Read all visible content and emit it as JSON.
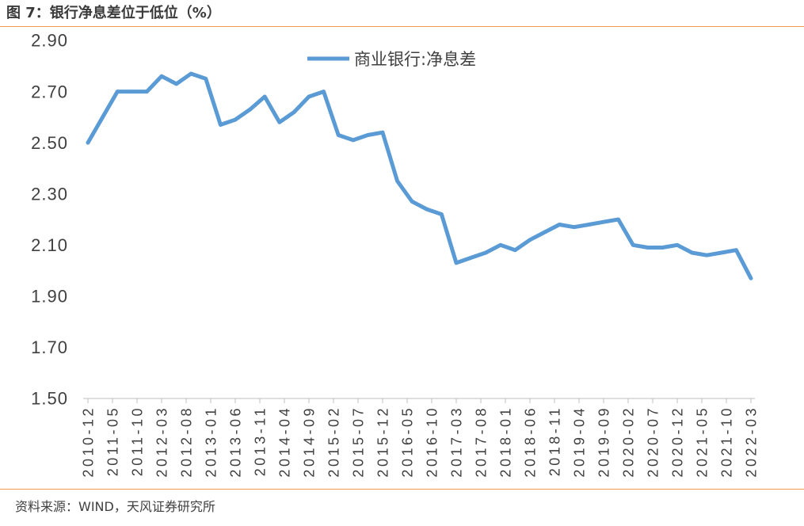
{
  "source": "资料来源：WIND，天风证券研究所",
  "colors": {
    "series": "#5B9BD5",
    "rule": "#ED9C4E",
    "axis": "#BFBFBF",
    "text": "#404040"
  },
  "chart_data": {
    "type": "line",
    "title": "图 7：银行净息差位于低位（%）",
    "xlabel": "",
    "ylabel": "",
    "x_axis_type": "date",
    "xlim": [
      "2010-12",
      "2022-03"
    ],
    "ylim": [
      1.5,
      2.9
    ],
    "grid": false,
    "legend": "top-center",
    "y_tick_labels": [
      "1.50",
      "1.70",
      "1.90",
      "2.10",
      "2.30",
      "2.50",
      "2.70",
      "2.90"
    ],
    "x_tick_labels": [
      "2010-12",
      "2011-05",
      "2011-10",
      "2012-03",
      "2012-08",
      "2013-01",
      "2013-06",
      "2013-11",
      "2014-04",
      "2014-09",
      "2015-02",
      "2015-07",
      "2015-12",
      "2016-05",
      "2016-10",
      "2017-03",
      "2017-08",
      "2018-01",
      "2018-06",
      "2018-11",
      "2019-04",
      "2019-09",
      "2020-02",
      "2020-07",
      "2020-12",
      "2021-05",
      "2021-10",
      "2022-03"
    ],
    "x": [
      "2010-12",
      "2011-03",
      "2011-06",
      "2011-09",
      "2011-12",
      "2012-03",
      "2012-06",
      "2012-09",
      "2012-12",
      "2013-03",
      "2013-06",
      "2013-09",
      "2013-12",
      "2014-03",
      "2014-06",
      "2014-09",
      "2014-12",
      "2015-03",
      "2015-06",
      "2015-09",
      "2015-12",
      "2016-03",
      "2016-06",
      "2016-09",
      "2016-12",
      "2017-03",
      "2017-06",
      "2017-09",
      "2017-12",
      "2018-03",
      "2018-06",
      "2018-09",
      "2018-12",
      "2019-03",
      "2019-06",
      "2019-09",
      "2019-12",
      "2020-03",
      "2020-06",
      "2020-09",
      "2020-12",
      "2021-03",
      "2021-06",
      "2021-09",
      "2021-12",
      "2022-03"
    ],
    "series": [
      {
        "name": "商业银行:净息差",
        "values": [
          2.5,
          2.6,
          2.7,
          2.7,
          2.7,
          2.76,
          2.73,
          2.77,
          2.75,
          2.57,
          2.59,
          2.63,
          2.68,
          2.58,
          2.62,
          2.68,
          2.7,
          2.53,
          2.51,
          2.53,
          2.54,
          2.35,
          2.27,
          2.24,
          2.22,
          2.03,
          2.05,
          2.07,
          2.1,
          2.08,
          2.12,
          2.15,
          2.18,
          2.17,
          2.18,
          2.19,
          2.2,
          2.1,
          2.09,
          2.09,
          2.1,
          2.07,
          2.06,
          2.07,
          2.08,
          1.97
        ]
      }
    ]
  }
}
